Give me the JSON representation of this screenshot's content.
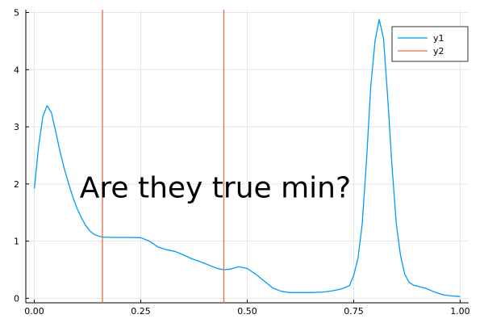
{
  "chart_data": {
    "type": "line",
    "xlim": [
      -0.02,
      1.02
    ],
    "ylim": [
      -0.08,
      5.05
    ],
    "x_ticks": [
      0.0,
      0.25,
      0.5,
      0.75,
      1.0
    ],
    "x_tick_labels": [
      "0.00",
      "0.25",
      "0.50",
      "0.75",
      "1.00"
    ],
    "y_ticks": [
      0,
      1,
      2,
      3,
      4,
      5
    ],
    "y_tick_labels": [
      "0",
      "1",
      "2",
      "3",
      "4",
      "5"
    ],
    "grid": true,
    "legend_placement": "top-right",
    "series": [
      {
        "name": "y1",
        "color": "#009af9",
        "kind": "line",
        "x": [
          0.0,
          0.01,
          0.02,
          0.03,
          0.04,
          0.05,
          0.06,
          0.07,
          0.08,
          0.09,
          0.1,
          0.11,
          0.12,
          0.13,
          0.14,
          0.15,
          0.16,
          0.18,
          0.2,
          0.22,
          0.25,
          0.27,
          0.29,
          0.31,
          0.33,
          0.35,
          0.37,
          0.39,
          0.41,
          0.43,
          0.445,
          0.46,
          0.48,
          0.5,
          0.52,
          0.54,
          0.56,
          0.58,
          0.6,
          0.62,
          0.65,
          0.68,
          0.7,
          0.72,
          0.74,
          0.75,
          0.76,
          0.77,
          0.78,
          0.79,
          0.8,
          0.81,
          0.82,
          0.83,
          0.84,
          0.85,
          0.86,
          0.87,
          0.88,
          0.89,
          0.9,
          0.92,
          0.94,
          0.96,
          0.98,
          1.0
        ],
        "y": [
          1.92,
          2.65,
          3.18,
          3.37,
          3.25,
          2.92,
          2.58,
          2.28,
          2.02,
          1.78,
          1.58,
          1.42,
          1.28,
          1.18,
          1.12,
          1.09,
          1.07,
          1.065,
          1.065,
          1.065,
          1.06,
          1.0,
          0.9,
          0.85,
          0.82,
          0.76,
          0.69,
          0.64,
          0.58,
          0.52,
          0.5,
          0.51,
          0.55,
          0.52,
          0.42,
          0.3,
          0.18,
          0.12,
          0.1,
          0.1,
          0.1,
          0.11,
          0.13,
          0.16,
          0.22,
          0.4,
          0.7,
          1.3,
          2.4,
          3.7,
          4.5,
          4.88,
          4.55,
          3.5,
          2.3,
          1.3,
          0.75,
          0.42,
          0.28,
          0.23,
          0.21,
          0.17,
          0.11,
          0.06,
          0.04,
          0.03
        ]
      },
      {
        "name": "y2",
        "color": "#e26f46",
        "kind": "vline",
        "x": [
          0.16,
          0.445
        ]
      }
    ],
    "annotations": [
      {
        "text": "Are they true min?",
        "x": 0.425,
        "y": 1.95
      }
    ]
  }
}
